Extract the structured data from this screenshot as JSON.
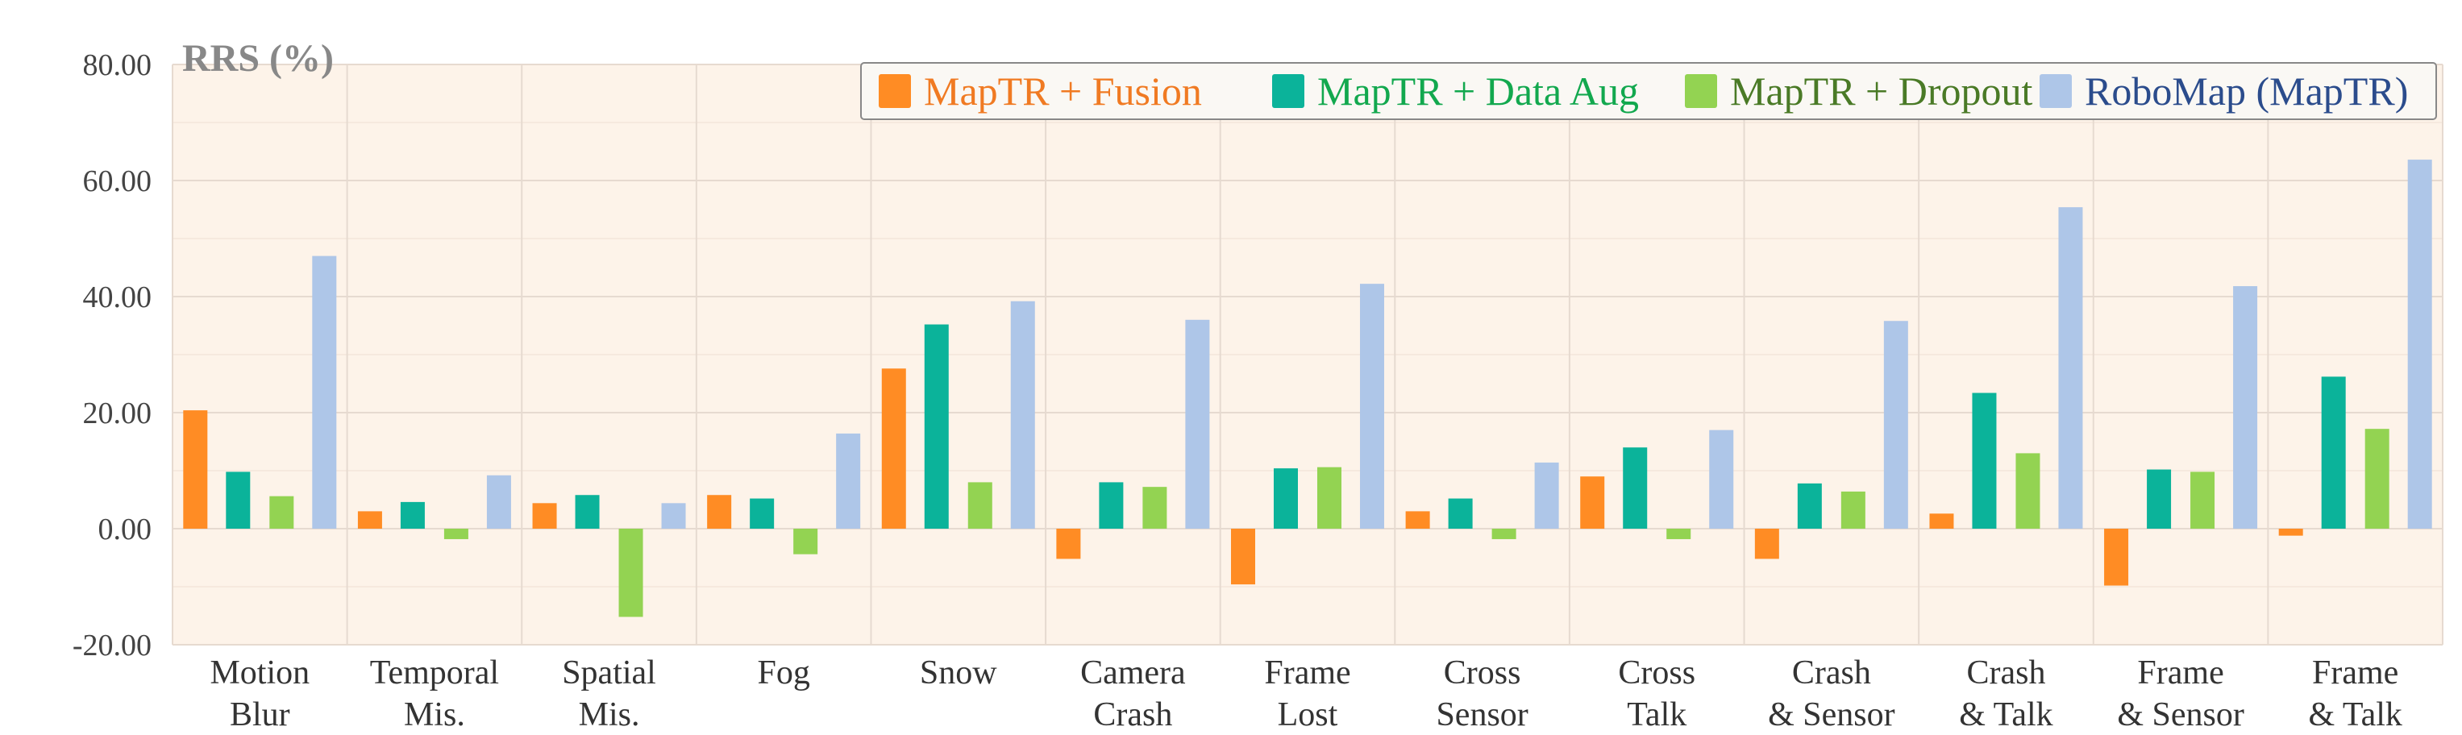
{
  "chart_data": {
    "type": "bar",
    "ylabel": "RRS (%)",
    "xlabel": "",
    "ylim": [
      -20,
      80
    ],
    "yticks": [
      "80.00",
      "60.00",
      "40.00",
      "20.00",
      "0.00",
      "-20.00"
    ],
    "grid": true,
    "legend_position": "top-right",
    "categories": [
      [
        "Motion",
        "Blur"
      ],
      [
        "Temporal",
        "Mis."
      ],
      [
        "Spatial",
        "Mis."
      ],
      [
        "Fog"
      ],
      [
        "Snow"
      ],
      [
        "Camera",
        "Crash"
      ],
      [
        "Frame",
        "Lost"
      ],
      [
        "Cross",
        "Sensor"
      ],
      [
        "Cross",
        "Talk"
      ],
      [
        "Crash",
        "& Sensor"
      ],
      [
        "Crash",
        "& Talk"
      ],
      [
        "Frame",
        "& Sensor"
      ],
      [
        "Frame",
        "& Talk"
      ]
    ],
    "series": [
      {
        "name": "MapTR + Fusion",
        "color": "#FF8C24",
        "text_color": "#F07A22",
        "values": [
          20.4,
          3.0,
          4.4,
          5.8,
          27.6,
          -5.2,
          -9.6,
          3.0,
          9.0,
          -5.2,
          2.6,
          -9.8,
          -1.2
        ]
      },
      {
        "name": "MapTR + Data Aug",
        "color": "#0BB39A",
        "text_color": "#12A84E",
        "values": [
          9.8,
          4.6,
          5.8,
          5.2,
          35.2,
          8.0,
          10.4,
          5.2,
          14.0,
          7.8,
          23.4,
          10.2,
          26.2
        ]
      },
      {
        "name": "MapTR + Dropout",
        "color": "#93D352",
        "text_color": "#4A7A26",
        "values": [
          5.6,
          -1.8,
          -15.2,
          -4.4,
          8.0,
          7.2,
          10.6,
          -1.8,
          -1.8,
          6.4,
          13.0,
          9.8,
          17.2
        ]
      },
      {
        "name": "RoboMap (MapTR)",
        "color": "#AEC6E8",
        "text_color": "#2B4C8C",
        "values": [
          47.0,
          9.2,
          4.4,
          16.4,
          39.2,
          36.0,
          42.2,
          11.4,
          17.0,
          35.8,
          55.4,
          41.8,
          63.6
        ]
      }
    ]
  }
}
